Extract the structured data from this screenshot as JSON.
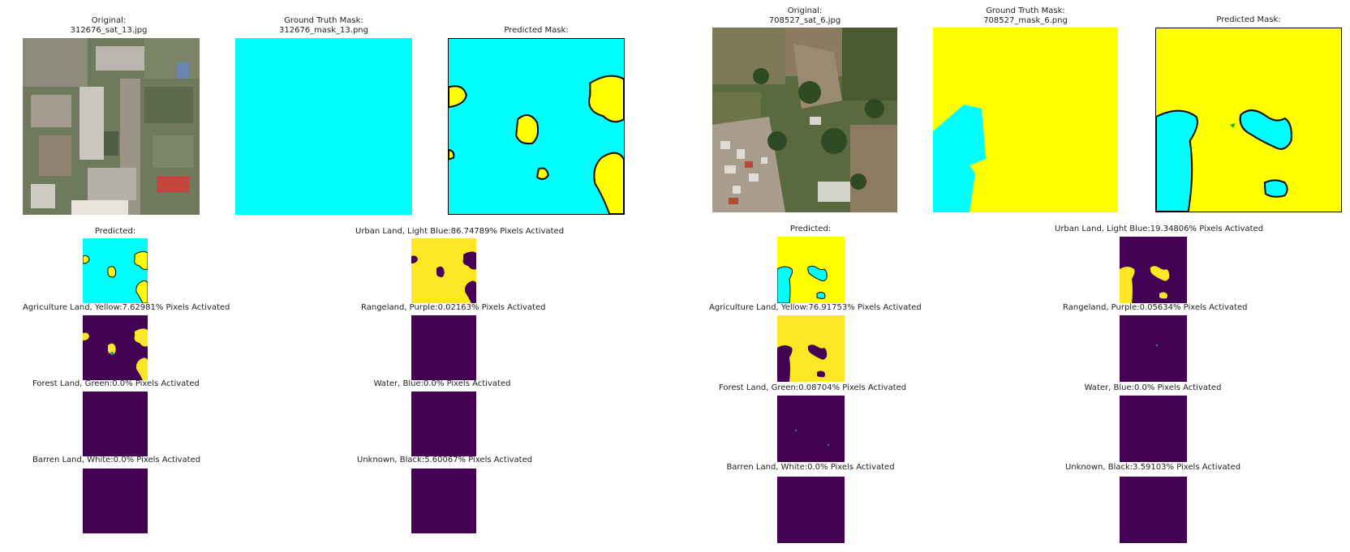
{
  "colors": {
    "cyan": "#00ffff",
    "yellow": "#ffff00",
    "viridis_low": "#440154",
    "viridis_high": "#fde725",
    "viridis_mid": "#21918c"
  },
  "left": {
    "original_title": "Original:",
    "original_file": "312676_sat_13.jpg",
    "gt_title": "Ground Truth Mask:",
    "gt_file": "312676_mask_13.png",
    "pred_mask_title": "Predicted Mask:",
    "predicted_title": "Predicted:",
    "classes": [
      {
        "label": "Urban Land, Light Blue:86.74789% Pixels Activated"
      },
      {
        "label": "Agriculture Land, Yellow:7.62981% Pixels Activated"
      },
      {
        "label": "Rangeland, Purple:0.02163% Pixels Activated"
      },
      {
        "label": "Forest Land, Green:0.0% Pixels Activated"
      },
      {
        "label": "Water, Blue:0.0% Pixels Activated"
      },
      {
        "label": "Barren Land, White:0.0% Pixels Activated"
      },
      {
        "label": "Unknown, Black:5.60067% Pixels Activated"
      }
    ]
  },
  "right": {
    "original_title": "Original:",
    "original_file": "708527_sat_6.jpg",
    "gt_title": "Ground Truth Mask:",
    "gt_file": "708527_mask_6.png",
    "pred_mask_title": "Predicted Mask:",
    "predicted_title": "Predicted:",
    "classes": [
      {
        "label": "Urban Land, Light Blue:19.34806% Pixels Activated"
      },
      {
        "label": "Agriculture Land, Yellow:76.91753% Pixels Activated"
      },
      {
        "label": "Rangeland, Purple:0.05634% Pixels Activated"
      },
      {
        "label": "Forest Land, Green:0.08704% Pixels Activated"
      },
      {
        "label": "Water, Blue:0.0% Pixels Activated"
      },
      {
        "label": "Barren Land, White:0.0% Pixels Activated"
      },
      {
        "label": "Unknown, Black:3.59103% Pixels Activated"
      }
    ]
  }
}
